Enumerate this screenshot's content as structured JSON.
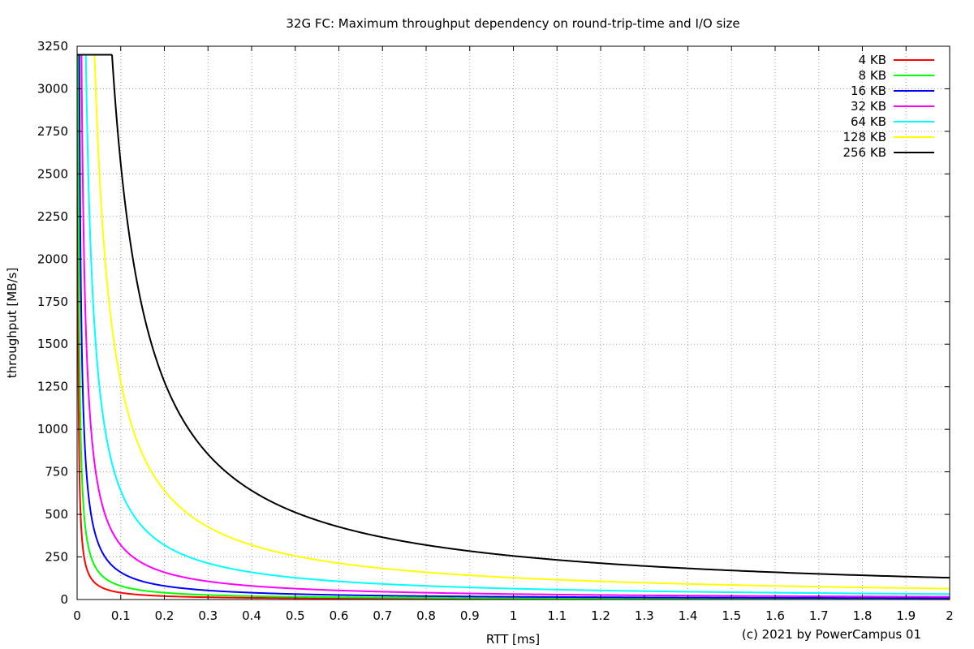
{
  "chart_data": {
    "type": "line",
    "title": "32G FC: Maximum throughput dependency on round-trip-time and I/O size",
    "xlabel": "RTT [ms]",
    "ylabel": "throughput [MB/s]",
    "footer": "(c) 2021 by PowerCampus 01",
    "xlim": [
      0,
      2
    ],
    "ylim": [
      0,
      3250
    ],
    "x_ticks": [
      "0",
      "0.1",
      "0.2",
      "0.3",
      "0.4",
      "0.5",
      "0.6",
      "0.7",
      "0.8",
      "0.9",
      "1",
      "1.1",
      "1.2",
      "1.3",
      "1.4",
      "1.5",
      "1.6",
      "1.7",
      "1.8",
      "1.9",
      "2"
    ],
    "y_ticks": [
      "0",
      "250",
      "500",
      "750",
      "1000",
      "1250",
      "1500",
      "1750",
      "2000",
      "2250",
      "2500",
      "2750",
      "3000",
      "3250"
    ],
    "grid": true,
    "legend_position": "top-right",
    "max_throughput": 3200,
    "x": [
      0.005,
      0.01,
      0.02,
      0.05,
      0.1,
      0.2,
      0.3,
      0.4,
      0.5,
      0.6,
      0.7,
      0.8,
      0.9,
      1.0,
      1.2,
      1.4,
      1.6,
      1.8,
      2.0
    ],
    "series": [
      {
        "name": "4 KB",
        "color": "#ff0000",
        "io_kb": 4,
        "values": [
          800,
          400,
          200,
          80,
          40,
          20,
          13.3,
          10,
          8,
          6.7,
          5.7,
          5,
          4.4,
          4,
          3.3,
          2.9,
          2.5,
          2.2,
          2
        ]
      },
      {
        "name": "8 KB",
        "color": "#00ff00",
        "io_kb": 8,
        "values": [
          1600,
          800,
          400,
          160,
          80,
          40,
          26.7,
          20,
          16,
          13.3,
          11.4,
          10,
          8.9,
          8,
          6.7,
          5.7,
          5,
          4.4,
          4
        ]
      },
      {
        "name": "16 KB",
        "color": "#0000ff",
        "io_kb": 16,
        "values": [
          3200,
          1600,
          800,
          320,
          160,
          80,
          53.3,
          40,
          32,
          26.7,
          22.9,
          20,
          17.8,
          16,
          13.3,
          11.4,
          10,
          8.9,
          8
        ]
      },
      {
        "name": "32 KB",
        "color": "#ff00ff",
        "io_kb": 32,
        "values": [
          3200,
          3200,
          1600,
          640,
          320,
          160,
          106.7,
          80,
          64,
          53.3,
          45.7,
          40,
          35.6,
          32,
          26.7,
          22.9,
          20,
          17.8,
          16
        ]
      },
      {
        "name": "64 KB",
        "color": "#00ffff",
        "io_kb": 64,
        "values": [
          3200,
          3200,
          3200,
          1280,
          640,
          320,
          213.3,
          160,
          128,
          106.7,
          91.4,
          80,
          71.1,
          64,
          53.3,
          45.7,
          40,
          35.6,
          32
        ]
      },
      {
        "name": "128 KB",
        "color": "#ffff00",
        "io_kb": 128,
        "values": [
          3200,
          3200,
          3200,
          2560,
          1280,
          640,
          426.7,
          320,
          256,
          213.3,
          182.9,
          160,
          142.2,
          128,
          106.7,
          91.4,
          80,
          71.1,
          64
        ]
      },
      {
        "name": "256 KB",
        "color": "#000000",
        "io_kb": 256,
        "values": [
          3200,
          3200,
          3200,
          3200,
          2560,
          1280,
          853.3,
          640,
          512,
          426.7,
          365.7,
          320,
          284.4,
          256,
          213.3,
          182.9,
          160,
          142.2,
          128
        ]
      }
    ]
  }
}
